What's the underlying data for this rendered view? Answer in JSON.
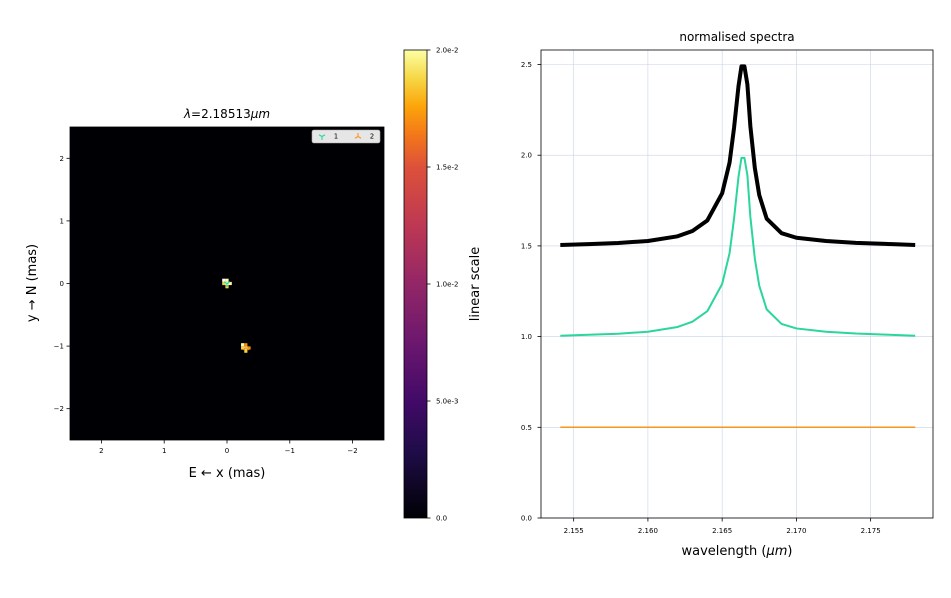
{
  "chart_data": [
    {
      "type": "heatmap",
      "title": "λ=2.18513μm",
      "title_prefix": "λ",
      "title_value": "=2.18513",
      "title_unit": "μm",
      "xlabel": "E ← x (mas)",
      "ylabel": "y → N (mas)",
      "xlim": [
        2.5,
        -2.5
      ],
      "ylim": [
        -2.5,
        2.5
      ],
      "xticks": [
        {
          "v": 2,
          "label": "2"
        },
        {
          "v": 1,
          "label": "1"
        },
        {
          "v": 0,
          "label": "0"
        },
        {
          "v": -1,
          "label": "−1"
        },
        {
          "v": -2,
          "label": "−2"
        }
      ],
      "yticks": [
        {
          "v": 2,
          "label": "2"
        },
        {
          "v": 1,
          "label": "1"
        },
        {
          "v": 0,
          "label": "0"
        },
        {
          "v": -1,
          "label": "−1"
        },
        {
          "v": -2,
          "label": "−2"
        }
      ],
      "background": "#000004",
      "components": [
        {
          "name": "1",
          "x": 0.0,
          "y": 0.0,
          "color": "#2ad69a",
          "pixel_colors": [
            "#ffffff",
            "#fcffa4",
            "#f7d13d"
          ]
        },
        {
          "name": "2",
          "x": -0.3,
          "y": -1.03,
          "color": "#f5961e",
          "pixel_colors": [
            "#fcffa4",
            "#f98e09",
            "#f7d13d"
          ]
        }
      ],
      "legend": {
        "position": "top-right",
        "labels": [
          "1",
          "2"
        ]
      },
      "colorbar": {
        "label": "linear scale",
        "min": 0.0,
        "max": 0.02,
        "ticks": [
          {
            "v": 0.0,
            "label": "0.0"
          },
          {
            "v": 0.005,
            "label": "5.0e-3"
          },
          {
            "v": 0.01,
            "label": "1.0e-2"
          },
          {
            "v": 0.015,
            "label": "1.5e-2"
          },
          {
            "v": 0.02,
            "label": "2.0e-2"
          }
        ],
        "colormap": "inferno"
      }
    },
    {
      "type": "line",
      "title": "normalised spectra",
      "xlabel_prefix": "wavelength (",
      "xlabel_unit": "μm",
      "xlabel_suffix": ")",
      "ylabel": "",
      "xlim": [
        2.1528,
        2.1792
      ],
      "ylim": [
        0.0,
        2.58
      ],
      "grid": true,
      "xticks": [
        {
          "v": 2.155,
          "label": "2.155"
        },
        {
          "v": 2.16,
          "label": "2.160"
        },
        {
          "v": 2.165,
          "label": "2.165"
        },
        {
          "v": 2.17,
          "label": "2.170"
        },
        {
          "v": 2.175,
          "label": "2.175"
        }
      ],
      "yticks": [
        {
          "v": 0.0,
          "label": "0.0"
        },
        {
          "v": 0.5,
          "label": "0.5"
        },
        {
          "v": 1.0,
          "label": "1.0"
        },
        {
          "v": 1.5,
          "label": "1.5"
        },
        {
          "v": 2.0,
          "label": "2.0"
        },
        {
          "v": 2.5,
          "label": "2.5"
        }
      ],
      "x": [
        2.1541,
        2.156,
        2.158,
        2.16,
        2.162,
        2.163,
        2.164,
        2.165,
        2.1655,
        2.1658,
        2.1661,
        2.1663,
        2.1665,
        2.1667,
        2.1669,
        2.1672,
        2.1675,
        2.168,
        2.169,
        2.17,
        2.172,
        2.174,
        2.176,
        2.178
      ],
      "series": [
        {
          "color": "#000000",
          "width": 4,
          "values": [
            1.505,
            1.51,
            1.516,
            1.527,
            1.553,
            1.582,
            1.64,
            1.79,
            1.96,
            2.15,
            2.38,
            2.49,
            2.49,
            2.39,
            2.16,
            1.93,
            1.78,
            1.65,
            1.57,
            1.545,
            1.527,
            1.517,
            1.511,
            1.505
          ]
        },
        {
          "color": "#2ad69a",
          "width": 2,
          "values": [
            1.005,
            1.01,
            1.016,
            1.027,
            1.053,
            1.082,
            1.14,
            1.29,
            1.46,
            1.65,
            1.88,
            1.985,
            1.985,
            1.89,
            1.66,
            1.43,
            1.28,
            1.15,
            1.07,
            1.045,
            1.027,
            1.017,
            1.011,
            1.005
          ]
        },
        {
          "color": "#f5961e",
          "width": 1.5,
          "values": [
            0.5,
            0.5,
            0.5,
            0.5,
            0.5,
            0.5,
            0.5,
            0.5,
            0.5,
            0.5,
            0.5,
            0.5,
            0.5,
            0.5,
            0.5,
            0.5,
            0.5,
            0.5,
            0.5,
            0.5,
            0.5,
            0.5,
            0.5,
            0.5
          ]
        }
      ]
    }
  ]
}
